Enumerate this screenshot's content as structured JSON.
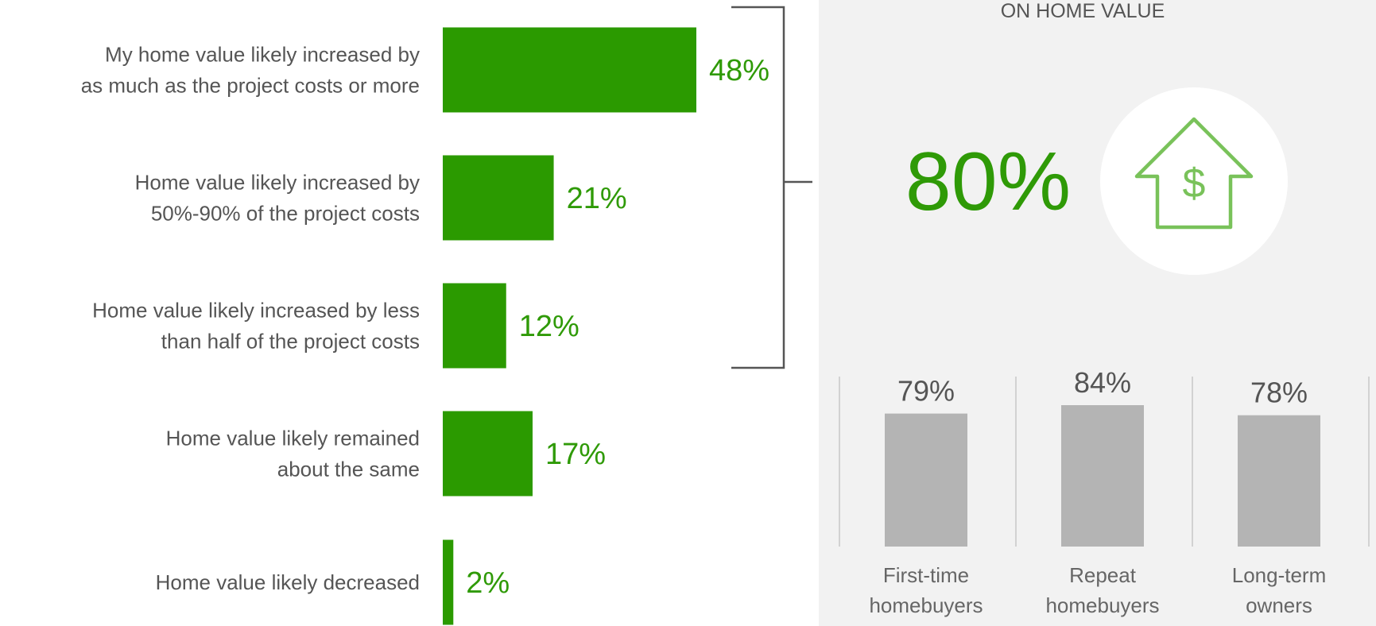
{
  "colors": {
    "bar": "#2b9a00",
    "accent_text": "#2f9a07",
    "panel_bg": "#f2f2f2",
    "sub_bar": "#b4b4b4",
    "icon": "#79c25a",
    "bracket": "#555555",
    "divider": "#d2d2d2"
  },
  "panel": {
    "title": "ON HOME VALUE",
    "big_value": "80%",
    "icon": "house-dollar-icon"
  },
  "chart_data": [
    {
      "type": "bar",
      "orientation": "horizontal",
      "categories": [
        [
          "My home value likely increased by",
          "as much as the project costs or more"
        ],
        [
          "Home value likely increased by",
          "50%-90% of the project costs"
        ],
        [
          "Home value likely increased by less",
          "than half of the project costs"
        ],
        [
          "Home value likely remained",
          "about the same"
        ],
        [
          "Home value likely decreased"
        ]
      ],
      "values": [
        48,
        21,
        12,
        17,
        2
      ],
      "value_labels": [
        "48%",
        "21%",
        "12%",
        "17%",
        "2%"
      ],
      "xlim": [
        0,
        48
      ]
    },
    {
      "type": "bar",
      "categories": [
        [
          "First-time",
          "homebuyers"
        ],
        [
          "Repeat",
          "homebuyers"
        ],
        [
          "Long-term",
          "owners"
        ]
      ],
      "values": [
        79,
        84,
        78
      ],
      "value_labels": [
        "79%",
        "84%",
        "78%"
      ],
      "ylim": [
        0,
        84
      ]
    }
  ]
}
